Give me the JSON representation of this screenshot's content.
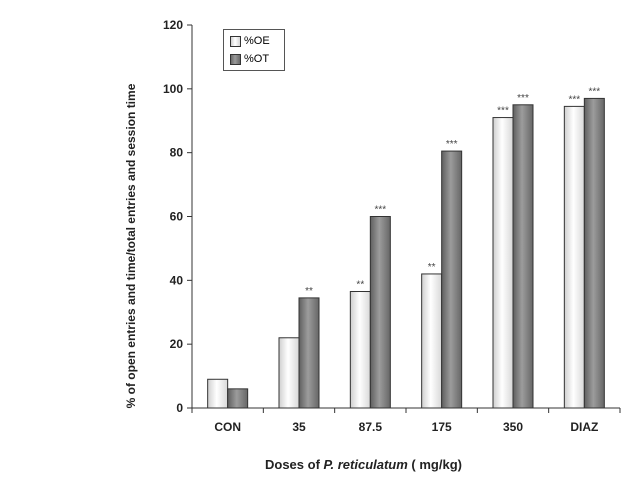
{
  "chart_data": {
    "type": "bar",
    "categories": [
      "CON",
      "35",
      "87.5",
      "175",
      "350",
      "DIAZ"
    ],
    "series": [
      {
        "name": "%OE",
        "values": [
          9,
          22,
          36.5,
          42,
          91,
          94.5
        ],
        "significance": [
          "",
          "",
          "**",
          "**",
          "***",
          "***"
        ]
      },
      {
        "name": "%OT",
        "values": [
          6,
          34.5,
          60,
          80.5,
          95,
          97
        ],
        "significance": [
          "",
          "**",
          "***",
          "***",
          "***",
          "***"
        ]
      }
    ],
    "ylim": [
      0,
      120
    ],
    "yticks": [
      0,
      20,
      40,
      60,
      80,
      100,
      120
    ],
    "ylabel": "% of open entries and time/total entries and session time",
    "xlabel_prefix": "Doses of ",
    "xlabel_italic": "P. reticulatum",
    "xlabel_suffix": " ( mg/kg)",
    "legend_position": "top-left",
    "grid": false,
    "colors": {
      "oe": "#f2f2f2",
      "ot": "#7f7f7f",
      "axis": "#333333"
    }
  }
}
